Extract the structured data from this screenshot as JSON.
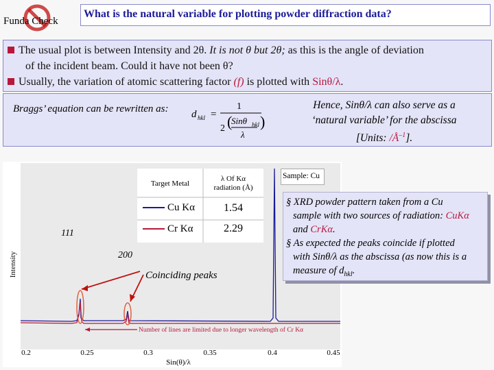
{
  "logo": {
    "label": "Funda Check",
    "icon": "prohibition-icon"
  },
  "title": "What is the natural variable for plotting powder diffraction data?",
  "bullets": [
    {
      "p1": "The usual plot is between Intensity and 2θ. ",
      "p2": "It is not ",
      "p3": "θ",
      "p4": " but 2",
      "p5": "θ",
      "p6": ";",
      "p7": " as this is the angle of deviation"
    },
    {
      "text": "of the incident beam. Could it have not been θ?"
    },
    {
      "p1": "Usually, the variation of atomic scattering factor ",
      "p2": "(f)",
      "p3": " is plotted with ",
      "p4": "Sinθ/λ",
      "p5": "."
    }
  ],
  "bragg": {
    "label": "Braggs’ equation can be rewritten as:",
    "eq_lhs": "d",
    "eq_sub": "hkl",
    "eq_one": "1",
    "eq_two": "2",
    "eq_sin": "Sinθ",
    "eq_lambda": "λ",
    "hence_line1": "Hence, Sinθ/λ can also serve as a",
    "hence_line2": "‘natural variable’ for the abscissa",
    "hence_line3a": "[Units: ",
    "hence_units": "/Å",
    "hence_sup": "–1",
    "hence_line3b": "]."
  },
  "plot": {
    "ylabel": "Intensity",
    "xlabel": "Sin(θ)/λ",
    "xticks": [
      "0.2",
      "0.25",
      "0.3",
      "0.35",
      "0.4",
      "0.45"
    ],
    "peak_111": "111",
    "peak_200": "200",
    "coinciding": "Coinciding peaks",
    "lines_note": "Number of lines are limited due to longer wavelength of Cr Kα",
    "legend_col1": "Target Metal",
    "legend_col2a": "λ Of Kα",
    "legend_col2b": "radiation (Å)",
    "rows": [
      {
        "metal": "Cu Kα",
        "value": "1.54",
        "color": "#1a1a9a"
      },
      {
        "metal": "Cr Kα",
        "value": "2.29",
        "color": "#b8173a"
      }
    ]
  },
  "sample": "Sample: Cu",
  "note": {
    "l1": "XRD powder pattern taken from a Cu",
    "l2a": "sample with two sources of radiation: ",
    "l2b": "CuKα",
    "l3a": "and ",
    "l3b": "CrKα",
    "l3c": ".",
    "l4": "As expected the peaks coincide if plotted",
    "l5": "with Sinθ/λ as the abscissa (as now this is a",
    "l6a": "measure of d",
    "l6b": "hkl",
    "l6c": "."
  },
  "colors": {
    "accent": "#b8173a",
    "title": "#1a1a9a",
    "panel": "#e4e4f8"
  }
}
